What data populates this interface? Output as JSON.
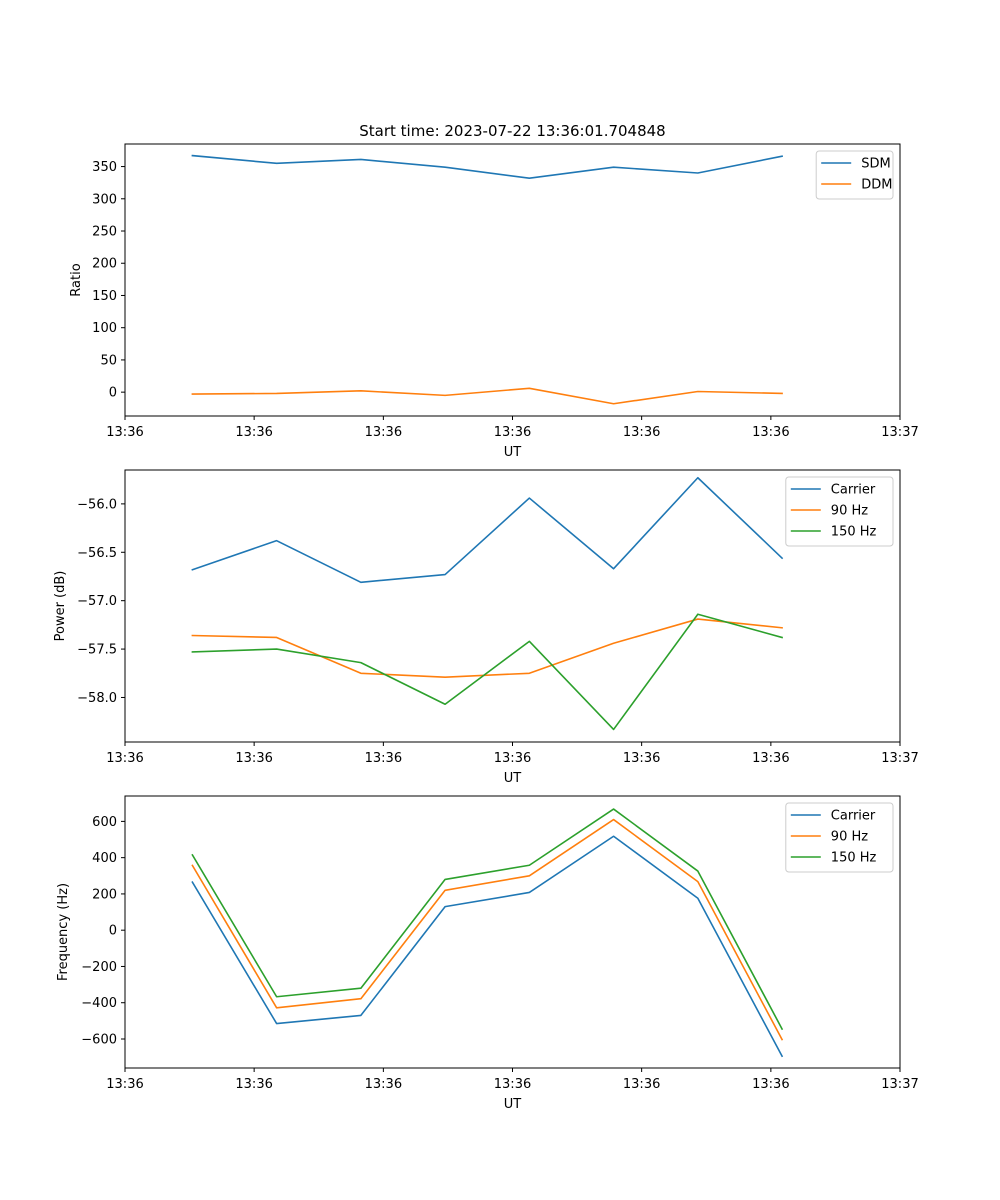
{
  "chart_data": [
    {
      "type": "line",
      "title": "Start time: 2023-07-22 13:36:01.704848",
      "xlabel": "UT",
      "ylabel": "Ratio",
      "x": [
        1,
        2,
        3,
        4,
        5,
        6,
        7,
        8
      ],
      "xlim": [
        0.2,
        9.4
      ],
      "x_ticks": [
        0.2,
        1.733,
        3.267,
        4.8,
        6.333,
        7.867,
        9.4
      ],
      "x_tick_labels": [
        "13:36",
        "13:36",
        "13:36",
        "13:36",
        "13:36",
        "13:36",
        "13:37"
      ],
      "ylim": [
        -37,
        385
      ],
      "y_ticks": [
        0,
        50,
        100,
        150,
        200,
        250,
        300,
        350
      ],
      "y_tick_labels": [
        "0",
        "50",
        "100",
        "150",
        "200",
        "250",
        "300",
        "350"
      ],
      "legend": "top-right",
      "series": [
        {
          "name": "SDM",
          "color": "#1f77b4",
          "values": [
            367,
            355,
            361,
            349,
            332,
            349,
            340,
            366
          ]
        },
        {
          "name": "DDM",
          "color": "#ff7f0e",
          "values": [
            -3,
            -2,
            2,
            -5,
            6,
            -18,
            1,
            -2
          ]
        }
      ]
    },
    {
      "type": "line",
      "title": "",
      "xlabel": "UT",
      "ylabel": "Power (dB)",
      "x": [
        1,
        2,
        3,
        4,
        5,
        6,
        7,
        8
      ],
      "xlim": [
        0.2,
        9.4
      ],
      "x_ticks": [
        0.2,
        1.733,
        3.267,
        4.8,
        6.333,
        7.867,
        9.4
      ],
      "x_tick_labels": [
        "13:36",
        "13:36",
        "13:36",
        "13:36",
        "13:36",
        "13:36",
        "13:37"
      ],
      "ylim": [
        -58.46,
        -55.65
      ],
      "y_ticks": [
        -56.0,
        -56.5,
        -57.0,
        -57.5,
        -58.0
      ],
      "y_tick_labels": [
        "−56.0",
        "−56.5",
        "−57.0",
        "−57.5",
        "−58.0"
      ],
      "legend": "top-right",
      "series": [
        {
          "name": "Carrier",
          "color": "#1f77b4",
          "values": [
            -56.68,
            -56.38,
            -56.81,
            -56.73,
            -55.94,
            -56.67,
            -55.73,
            -56.56
          ]
        },
        {
          "name": "90 Hz",
          "color": "#ff7f0e",
          "values": [
            -57.36,
            -57.38,
            -57.75,
            -57.79,
            -57.75,
            -57.44,
            -57.19,
            -57.28
          ]
        },
        {
          "name": "150 Hz",
          "color": "#2ca02c",
          "values": [
            -57.53,
            -57.5,
            -57.64,
            -58.07,
            -57.42,
            -58.33,
            -57.14,
            -57.38
          ]
        }
      ]
    },
    {
      "type": "line",
      "title": "",
      "xlabel": "UT",
      "ylabel": "Frequency (Hz)",
      "x": [
        1,
        2,
        3,
        4,
        5,
        6,
        7,
        8
      ],
      "xlim": [
        0.2,
        9.4
      ],
      "x_ticks": [
        0.2,
        1.733,
        3.267,
        4.8,
        6.333,
        7.867,
        9.4
      ],
      "x_tick_labels": [
        "13:36",
        "13:36",
        "13:36",
        "13:36",
        "13:36",
        "13:36",
        "13:37"
      ],
      "ylim": [
        -760,
        740
      ],
      "y_ticks": [
        600,
        400,
        200,
        0,
        -200,
        -400,
        -600
      ],
      "y_tick_labels": [
        "600",
        "400",
        "200",
        "0",
        "−200",
        "−400",
        "−600"
      ],
      "legend": "top-right",
      "series": [
        {
          "name": "Carrier",
          "color": "#1f77b4",
          "values": [
            265,
            -515,
            -470,
            130,
            208,
            518,
            176,
            -695
          ]
        },
        {
          "name": "90 Hz",
          "color": "#ff7f0e",
          "values": [
            357,
            -428,
            -378,
            220,
            300,
            610,
            268,
            -603
          ]
        },
        {
          "name": "150 Hz",
          "color": "#2ca02c",
          "values": [
            415,
            -367,
            -320,
            280,
            358,
            668,
            326,
            -545
          ]
        }
      ]
    }
  ]
}
